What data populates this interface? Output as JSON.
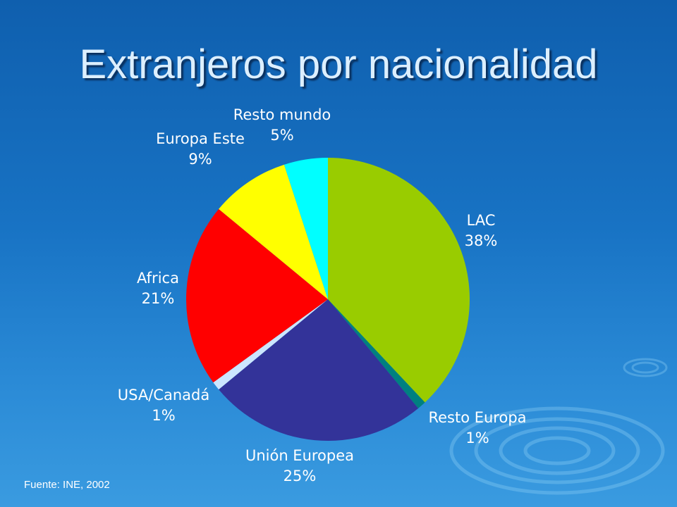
{
  "title": "Extranjeros por nacionalidad",
  "source": "Fuente: INE, 2002",
  "colors": {
    "LAC": "#99cc00",
    "Resto Europa": "#008080",
    "Unión Europea": "#333399",
    "USA/Canadá": "#cce6ff",
    "Africa": "#ff0000",
    "Europa Este": "#ffff00",
    "Resto mundo": "#00ffff"
  },
  "chart_data": {
    "type": "pie",
    "title": "Extranjeros por nacionalidad",
    "slices": [
      {
        "label": "LAC",
        "value": 38,
        "value_label": "38%"
      },
      {
        "label": "Resto Europa",
        "value": 1,
        "value_label": "1%"
      },
      {
        "label": "Unión Europea",
        "value": 25,
        "value_label": "25%"
      },
      {
        "label": "USA/Canadá",
        "value": 1,
        "value_label": "1%"
      },
      {
        "label": "Africa",
        "value": 21,
        "value_label": "21%"
      },
      {
        "label": "Europa Este",
        "value": 9,
        "value_label": "9%"
      },
      {
        "label": "Resto mundo",
        "value": 5,
        "value_label": "5%"
      }
    ],
    "start": "12 o'clock",
    "direction": "clockwise"
  }
}
